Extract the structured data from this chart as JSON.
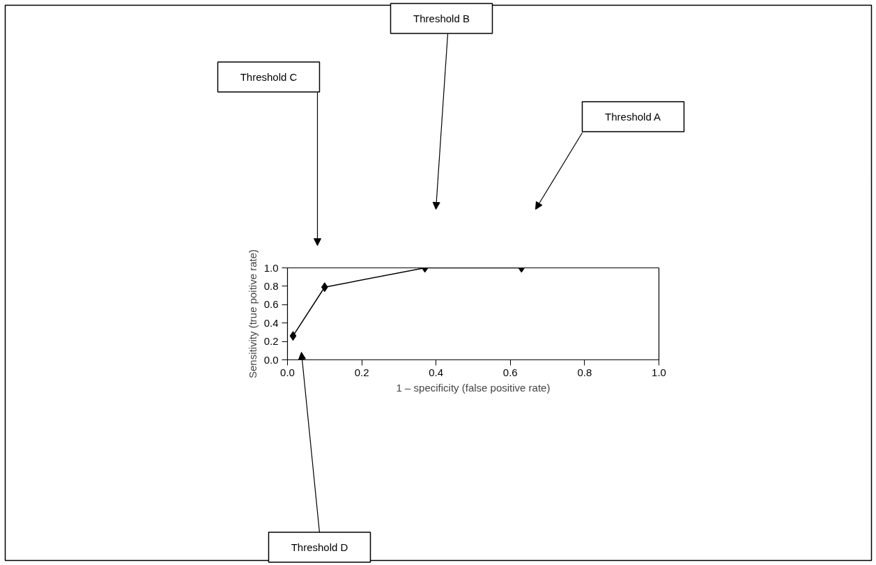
{
  "chart_data": {
    "type": "line",
    "xlabel": "1 – specificity (false positive rate)",
    "ylabel": "Sensitivity (true poitive rate)",
    "x": [
      0.015,
      0.1,
      0.37,
      0.63
    ],
    "series": [
      {
        "color": "#000000",
        "values": [
          0.26,
          0.79,
          1.0,
          1.0
        ]
      }
    ],
    "marker": "diamond",
    "line_style": "solid",
    "grid": false,
    "xlim": [
      0,
      1
    ],
    "ylim": [
      0,
      1
    ],
    "xticks": [
      {
        "value": 0,
        "label": "0.0"
      },
      {
        "value": 0.2,
        "label": "0.2"
      },
      {
        "value": 0.4,
        "label": "0.4"
      },
      {
        "value": 0.6,
        "label": "0.6"
      },
      {
        "value": 0.8,
        "label": "0.8"
      },
      {
        "value": 1,
        "label": "1.0"
      }
    ],
    "yticks": [
      {
        "value": 0,
        "label": "0.0"
      },
      {
        "value": 0.2,
        "label": "0.2"
      },
      {
        "value": 0.4,
        "label": "0.4"
      },
      {
        "value": 0.6,
        "label": "0.6"
      },
      {
        "value": 0.8,
        "label": "0.8"
      },
      {
        "value": 1,
        "label": "1.0"
      }
    ],
    "annotations": [
      "Threshold A",
      "Threshold B",
      "Threshold C",
      "Threshold D"
    ]
  }
}
